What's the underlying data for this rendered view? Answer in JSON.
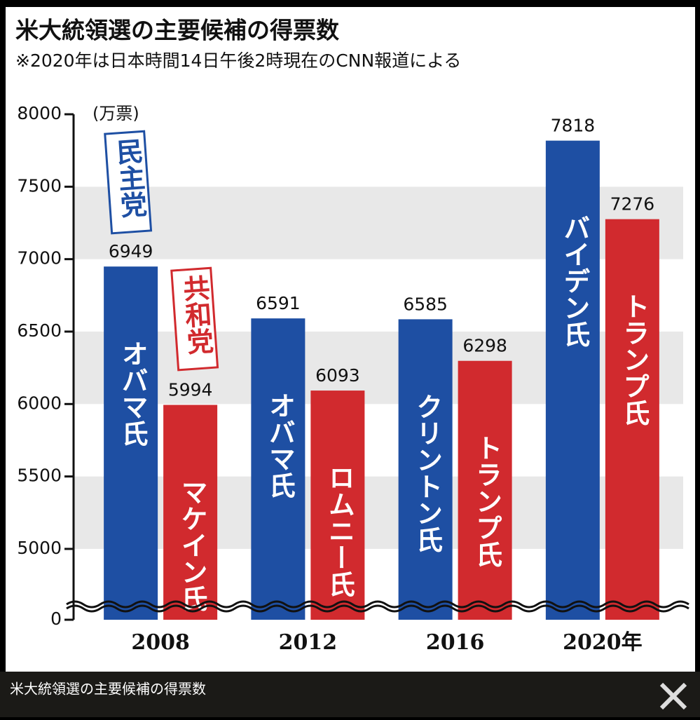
{
  "chart_data": {
    "type": "bar",
    "title": "米大統領選の主要候補の得票数",
    "subtitle": "※2020年は日本時間14日午後2時現在のCNN報道による",
    "y_label": "(万票)",
    "categories": [
      "2008",
      "2012",
      "2016",
      "2020年"
    ],
    "series": [
      {
        "name": "民主党",
        "color": "#1e4fa3",
        "values": [
          6949,
          6591,
          6585,
          7818
        ],
        "labels": [
          "オバマ氏",
          "オバマ氏",
          "クリントン氏",
          "バイデン氏"
        ]
      },
      {
        "name": "共和党",
        "color": "#d12a2e",
        "values": [
          5994,
          6093,
          6298,
          7276
        ],
        "labels": [
          "マケイン氏",
          "ロムニー氏",
          "トランプ氏",
          "トランプ氏"
        ]
      }
    ],
    "ylim": [
      0,
      8000
    ],
    "ybreak": [
      0,
      4600
    ],
    "yticks": [
      0,
      5000,
      5500,
      6000,
      6500,
      7000,
      7500,
      8000
    ],
    "grid": "bands"
  },
  "caption": "米大統領選の主要候補の得票数"
}
